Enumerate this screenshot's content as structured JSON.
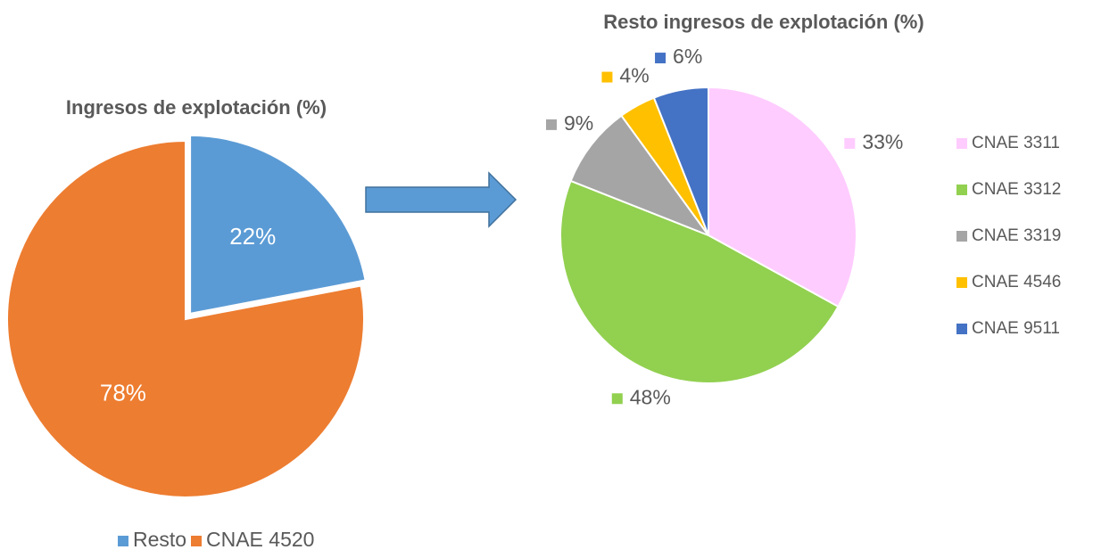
{
  "chart_data": [
    {
      "type": "pie",
      "title": "Ingresos de explotación (%)",
      "categories": [
        "Resto",
        "CNAE 4520"
      ],
      "values": [
        22,
        78
      ],
      "value_labels": [
        "22%",
        "78%"
      ],
      "colors": [
        "#5B9BD5",
        "#ED7D31"
      ],
      "legend": "bottom"
    },
    {
      "type": "pie",
      "title": "Resto ingresos de explotación (%)",
      "categories": [
        "CNAE 3311",
        "CNAE 3312",
        "CNAE 3319",
        "CNAE 4546",
        "CNAE 9511"
      ],
      "values": [
        33,
        48,
        9,
        4,
        6
      ],
      "value_labels": [
        "33%",
        "48%",
        "9%",
        "4%",
        "6%"
      ],
      "colors": [
        "#FFCCFF",
        "#92D050",
        "#A5A5A5",
        "#FFC000",
        "#4472C4"
      ],
      "legend": "right"
    }
  ]
}
